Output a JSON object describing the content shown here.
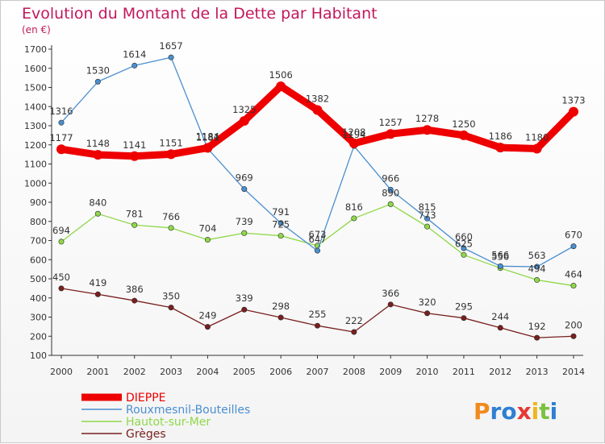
{
  "chart_data": {
    "type": "line",
    "title": "Evolution du Montant de la Dette par Habitant",
    "subtitle": "(en €)",
    "x": [
      "2000",
      "2001",
      "2002",
      "2003",
      "2004",
      "2005",
      "2006",
      "2007",
      "2008",
      "2009",
      "2010",
      "2011",
      "2012",
      "2013",
      "2014"
    ],
    "ylim": [
      100,
      1700
    ],
    "yticks": [
      100,
      200,
      300,
      400,
      500,
      600,
      700,
      800,
      900,
      1000,
      1100,
      1200,
      1300,
      1400,
      1500,
      1600,
      1700
    ],
    "grid": false,
    "legend": "bottom-left",
    "series": [
      {
        "name": "DIEPPE",
        "color": "#ee0000",
        "values": [
          1177,
          1148,
          1141,
          1151,
          1184,
          1325,
          1506,
          1382,
          1208,
          1257,
          1278,
          1250,
          1186,
          1180,
          1373
        ]
      },
      {
        "name": "Rouxmesnil-Bouteilles",
        "color": "#4a8fd0",
        "values": [
          1316,
          1530,
          1614,
          1657,
          1181,
          969,
          791,
          647,
          1194,
          966,
          815,
          660,
          566,
          563,
          670
        ]
      },
      {
        "name": "Hautot-sur-Mer",
        "color": "#8fd84a",
        "values": [
          694,
          840,
          781,
          766,
          704,
          739,
          725,
          673,
          816,
          890,
          773,
          625,
          556,
          494,
          464
        ]
      },
      {
        "name": "Grèges",
        "color": "#7a1f1f",
        "values": [
          450,
          419,
          386,
          350,
          249,
          339,
          298,
          255,
          222,
          366,
          320,
          295,
          244,
          192,
          200
        ]
      }
    ]
  },
  "logo": {
    "text": "Proxiti"
  }
}
